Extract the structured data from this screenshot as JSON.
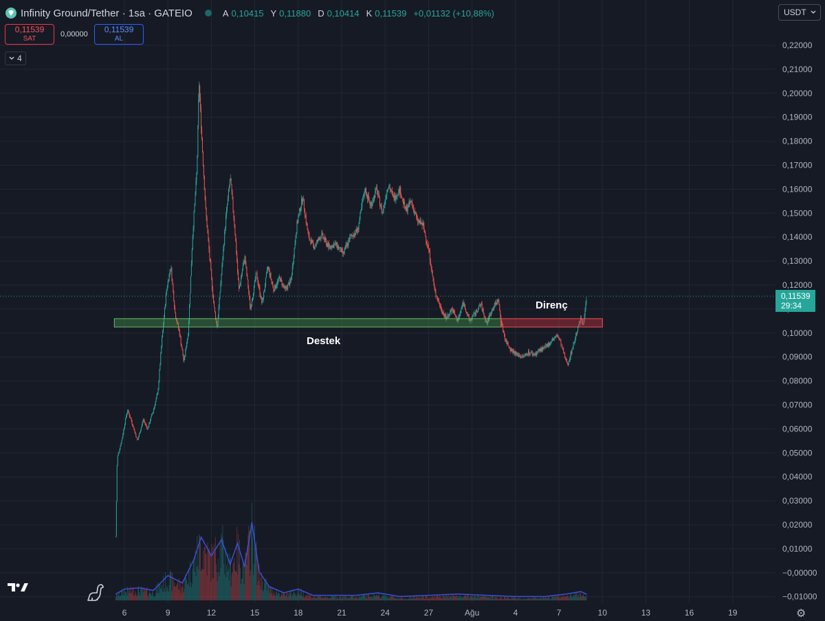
{
  "header": {
    "title": "Infinity Ground/Tether · 1sa · GATEIO",
    "ohlc": [
      {
        "k": "A",
        "v": "0,10415"
      },
      {
        "k": "Y",
        "v": "0,11880"
      },
      {
        "k": "D",
        "v": "0,10414"
      },
      {
        "k": "K",
        "v": "0,11539"
      }
    ],
    "change": "+0,01132 (+10,88%)"
  },
  "trade": {
    "sell_price": "0,11539",
    "sell_label": "SAT",
    "spread": "0,00000",
    "buy_price": "0,11539",
    "buy_label": "AL"
  },
  "indicator_count": "4",
  "currency": "USDT",
  "last_price": {
    "value": "0,11539",
    "countdown": "29:34"
  },
  "annotations": {
    "support": "Destek",
    "resistance": "Direnç"
  },
  "colors": {
    "background": "#161a25",
    "up": "#26a69a",
    "down": "#ef5350",
    "volume_ma": "#3b4fd8",
    "support_zone": "#4caf50",
    "resistance_zone": "#f23645"
  },
  "chart_data": {
    "type": "candlestick",
    "timeframe": "1h",
    "y_ticks": [
      "0,22000",
      "0,21000",
      "0,20000",
      "0,19000",
      "0,18000",
      "0,17000",
      "0,16000",
      "0,15000",
      "0,14000",
      "0,13000",
      "0,12000",
      "0,11000",
      "0,10000",
      "0,09000",
      "0,08000",
      "0,07000",
      "0,06000",
      "0,05000",
      "0,04000",
      "0,03000",
      "0,02000",
      "0,01000",
      "−0,00000",
      "−0,01000"
    ],
    "ylim": [
      -0.012,
      0.222
    ],
    "x_ticks": [
      "6",
      "9",
      "12",
      "15",
      "18",
      "21",
      "24",
      "27",
      "Ağu",
      "4",
      "7",
      "10",
      "13",
      "16",
      "19"
    ],
    "price_path": [
      {
        "day": 5.4,
        "price": 0.015
      },
      {
        "day": 5.5,
        "price": 0.048
      },
      {
        "day": 5.8,
        "price": 0.055
      },
      {
        "day": 6.2,
        "price": 0.068
      },
      {
        "day": 6.5,
        "price": 0.063
      },
      {
        "day": 6.9,
        "price": 0.055
      },
      {
        "day": 7.3,
        "price": 0.064
      },
      {
        "day": 7.6,
        "price": 0.06
      },
      {
        "day": 8.0,
        "price": 0.068
      },
      {
        "day": 8.3,
        "price": 0.075
      },
      {
        "day": 8.6,
        "price": 0.098
      },
      {
        "day": 8.9,
        "price": 0.118
      },
      {
        "day": 9.2,
        "price": 0.128
      },
      {
        "day": 9.5,
        "price": 0.108
      },
      {
        "day": 9.8,
        "price": 0.1
      },
      {
        "day": 10.1,
        "price": 0.088
      },
      {
        "day": 10.4,
        "price": 0.1
      },
      {
        "day": 10.7,
        "price": 0.14
      },
      {
        "day": 11.0,
        "price": 0.168
      },
      {
        "day": 11.15,
        "price": 0.205
      },
      {
        "day": 11.35,
        "price": 0.18
      },
      {
        "day": 11.6,
        "price": 0.152
      },
      {
        "day": 11.9,
        "price": 0.13
      },
      {
        "day": 12.2,
        "price": 0.11
      },
      {
        "day": 12.4,
        "price": 0.102
      },
      {
        "day": 12.7,
        "price": 0.125
      },
      {
        "day": 13.0,
        "price": 0.148
      },
      {
        "day": 13.3,
        "price": 0.165
      },
      {
        "day": 13.6,
        "price": 0.145
      },
      {
        "day": 13.9,
        "price": 0.118
      },
      {
        "day": 14.3,
        "price": 0.132
      },
      {
        "day": 14.7,
        "price": 0.11
      },
      {
        "day": 15.1,
        "price": 0.125
      },
      {
        "day": 15.5,
        "price": 0.112
      },
      {
        "day": 15.9,
        "price": 0.128
      },
      {
        "day": 16.3,
        "price": 0.118
      },
      {
        "day": 16.7,
        "price": 0.123
      },
      {
        "day": 17.1,
        "price": 0.118
      },
      {
        "day": 17.5,
        "price": 0.122
      },
      {
        "day": 17.9,
        "price": 0.145
      },
      {
        "day": 18.3,
        "price": 0.157
      },
      {
        "day": 18.7,
        "price": 0.14
      },
      {
        "day": 19.1,
        "price": 0.136
      },
      {
        "day": 19.6,
        "price": 0.141
      },
      {
        "day": 20.1,
        "price": 0.136
      },
      {
        "day": 20.6,
        "price": 0.137
      },
      {
        "day": 21.1,
        "price": 0.133
      },
      {
        "day": 21.6,
        "price": 0.14
      },
      {
        "day": 22.1,
        "price": 0.143
      },
      {
        "day": 22.6,
        "price": 0.16
      },
      {
        "day": 23.0,
        "price": 0.153
      },
      {
        "day": 23.4,
        "price": 0.16
      },
      {
        "day": 23.8,
        "price": 0.15
      },
      {
        "day": 24.2,
        "price": 0.162
      },
      {
        "day": 24.6,
        "price": 0.156
      },
      {
        "day": 25.0,
        "price": 0.16
      },
      {
        "day": 25.4,
        "price": 0.151
      },
      {
        "day": 25.8,
        "price": 0.155
      },
      {
        "day": 26.2,
        "price": 0.147
      },
      {
        "day": 26.6,
        "price": 0.145
      },
      {
        "day": 27.0,
        "price": 0.135
      },
      {
        "day": 27.4,
        "price": 0.118
      },
      {
        "day": 27.8,
        "price": 0.111
      },
      {
        "day": 28.2,
        "price": 0.106
      },
      {
        "day": 28.6,
        "price": 0.11
      },
      {
        "day": 29.0,
        "price": 0.105
      },
      {
        "day": 29.4,
        "price": 0.113
      },
      {
        "day": 29.8,
        "price": 0.105
      },
      {
        "day": 30.2,
        "price": 0.108
      },
      {
        "day": 30.6,
        "price": 0.112
      },
      {
        "day": 31.0,
        "price": 0.104
      },
      {
        "day": 31.4,
        "price": 0.11
      },
      {
        "day": 31.8,
        "price": 0.114
      },
      {
        "day": 32.0,
        "price": 0.105
      },
      {
        "day": 32.3,
        "price": 0.097
      },
      {
        "day": 32.7,
        "price": 0.093
      },
      {
        "day": 33.1,
        "price": 0.091
      },
      {
        "day": 33.5,
        "price": 0.09
      },
      {
        "day": 33.9,
        "price": 0.092
      },
      {
        "day": 34.3,
        "price": 0.091
      },
      {
        "day": 34.7,
        "price": 0.093
      },
      {
        "day": 35.1,
        "price": 0.094
      },
      {
        "day": 35.5,
        "price": 0.097
      },
      {
        "day": 35.9,
        "price": 0.099
      },
      {
        "day": 36.1,
        "price": 0.096
      },
      {
        "day": 36.4,
        "price": 0.09
      },
      {
        "day": 36.6,
        "price": 0.087
      },
      {
        "day": 36.9,
        "price": 0.093
      },
      {
        "day": 37.2,
        "price": 0.1
      },
      {
        "day": 37.5,
        "price": 0.106
      },
      {
        "day": 37.7,
        "price": 0.104
      },
      {
        "day": 37.9,
        "price": 0.115
      }
    ],
    "volume_ma": [
      {
        "day": 5.4,
        "value": 0.4
      },
      {
        "day": 6.0,
        "value": 0.8
      },
      {
        "day": 7.0,
        "value": 0.9
      },
      {
        "day": 8.0,
        "value": 0.7
      },
      {
        "day": 9.0,
        "value": 1.9
      },
      {
        "day": 10.0,
        "value": 1.3
      },
      {
        "day": 10.8,
        "value": 3.2
      },
      {
        "day": 11.3,
        "value": 5.0
      },
      {
        "day": 12.0,
        "value": 3.5
      },
      {
        "day": 12.7,
        "value": 4.8
      },
      {
        "day": 13.3,
        "value": 2.8
      },
      {
        "day": 13.8,
        "value": 4.5
      },
      {
        "day": 14.3,
        "value": 2.6
      },
      {
        "day": 14.8,
        "value": 6.2
      },
      {
        "day": 15.3,
        "value": 2.2
      },
      {
        "day": 16.0,
        "value": 1.0
      },
      {
        "day": 17.0,
        "value": 0.5
      },
      {
        "day": 18.0,
        "value": 0.8
      },
      {
        "day": 19.0,
        "value": 0.3
      },
      {
        "day": 22.0,
        "value": 0.3
      },
      {
        "day": 23.5,
        "value": 0.5
      },
      {
        "day": 25.0,
        "value": 0.2
      },
      {
        "day": 27.0,
        "value": 0.3
      },
      {
        "day": 29.0,
        "value": 0.4
      },
      {
        "day": 31.0,
        "value": 0.3
      },
      {
        "day": 33.0,
        "value": 0.2
      },
      {
        "day": 35.0,
        "value": 0.2
      },
      {
        "day": 36.5,
        "value": 0.4
      },
      {
        "day": 37.5,
        "value": 0.6
      },
      {
        "day": 37.9,
        "value": 0.4
      }
    ],
    "support_zone": {
      "from_day": 5.3,
      "to_day": 32.0,
      "low": 0.1025,
      "high": 0.106
    },
    "resistance_zone": {
      "from_day": 32.0,
      "to_day": 39.0,
      "low": 0.1025,
      "high": 0.106
    },
    "last_price": 0.11539
  }
}
